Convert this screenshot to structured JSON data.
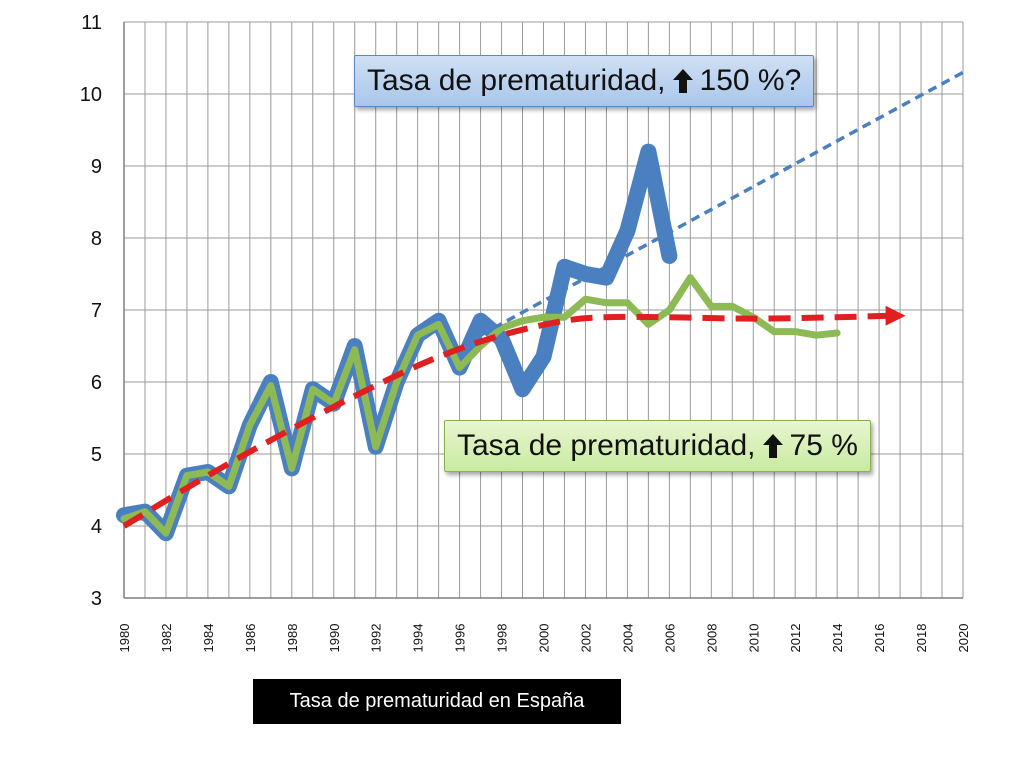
{
  "chart_data": {
    "type": "line",
    "title": "",
    "xlabel": "",
    "ylabel": "",
    "xlim": [
      1980,
      2020
    ],
    "ylim": [
      3,
      11
    ],
    "y_ticks": [
      3,
      4,
      5,
      6,
      7,
      8,
      9,
      10,
      11
    ],
    "x_ticks": [
      1980,
      1982,
      1984,
      1986,
      1988,
      1990,
      1992,
      1994,
      1996,
      1998,
      2000,
      2002,
      2004,
      2006,
      2008,
      2010,
      2012,
      2014,
      2016,
      2018,
      2020
    ],
    "grid": true,
    "series": [
      {
        "style": "thick-solid",
        "color": "#4a7fc0",
        "x": [
          1980,
          1981,
          1982,
          1983,
          1984,
          1985,
          1986,
          1987,
          1988,
          1989,
          1990,
          1991,
          1992,
          1993,
          1994,
          1995,
          1996,
          1997,
          1998,
          1999,
          2000,
          2001,
          2002,
          2003,
          2004,
          2005,
          2006
        ],
        "y": [
          4.15,
          4.2,
          3.9,
          4.7,
          4.75,
          4.55,
          5.4,
          6.0,
          4.8,
          5.9,
          5.7,
          6.5,
          5.1,
          6.0,
          6.65,
          6.85,
          6.2,
          6.85,
          6.6,
          5.9,
          6.35,
          7.6,
          7.5,
          7.45,
          8.1,
          9.2,
          7.75
        ]
      },
      {
        "style": "solid",
        "color": "#8dba55",
        "x": [
          1980,
          1981,
          1982,
          1983,
          1984,
          1985,
          1986,
          1987,
          1988,
          1989,
          1990,
          1991,
          1992,
          1993,
          1994,
          1995,
          1996,
          1997,
          1998,
          1999,
          2000,
          2001,
          2002,
          2003,
          2004,
          2005,
          2006,
          2007,
          2008,
          2009,
          2010,
          2011,
          2012,
          2013,
          2014
        ],
        "y": [
          4.1,
          4.2,
          3.9,
          4.7,
          4.75,
          4.55,
          5.4,
          5.95,
          4.8,
          5.9,
          5.7,
          6.45,
          5.1,
          6.0,
          6.65,
          6.8,
          6.2,
          6.5,
          6.75,
          6.85,
          6.9,
          6.9,
          7.15,
          7.1,
          7.1,
          6.8,
          7.0,
          7.45,
          7.05,
          7.05,
          6.9,
          6.7,
          6.7,
          6.65,
          6.68
        ]
      },
      {
        "style": "dashed-blue-trend",
        "color": "#4a7fc0",
        "x": [
          1997,
          2020
        ],
        "y": [
          6.65,
          10.3
        ]
      },
      {
        "style": "dashed-red-trend-arrow",
        "color": "#e02020",
        "x": [
          1980,
          1984,
          1988,
          1992,
          1995,
          1998,
          2001,
          2003,
          2006,
          2010,
          2014,
          2016.5
        ],
        "y": [
          4.0,
          4.7,
          5.35,
          5.95,
          6.35,
          6.65,
          6.85,
          6.9,
          6.9,
          6.88,
          6.9,
          6.92
        ]
      }
    ]
  },
  "callouts": {
    "blue_prefix": "Tasa de prematuridad,",
    "blue_suffix": "150 %?",
    "green_prefix": "Tasa de prematuridad,",
    "green_suffix": "75 %",
    "arrow_icon": "up-arrow-icon"
  },
  "caption": "Tasa de prematuridad en España"
}
